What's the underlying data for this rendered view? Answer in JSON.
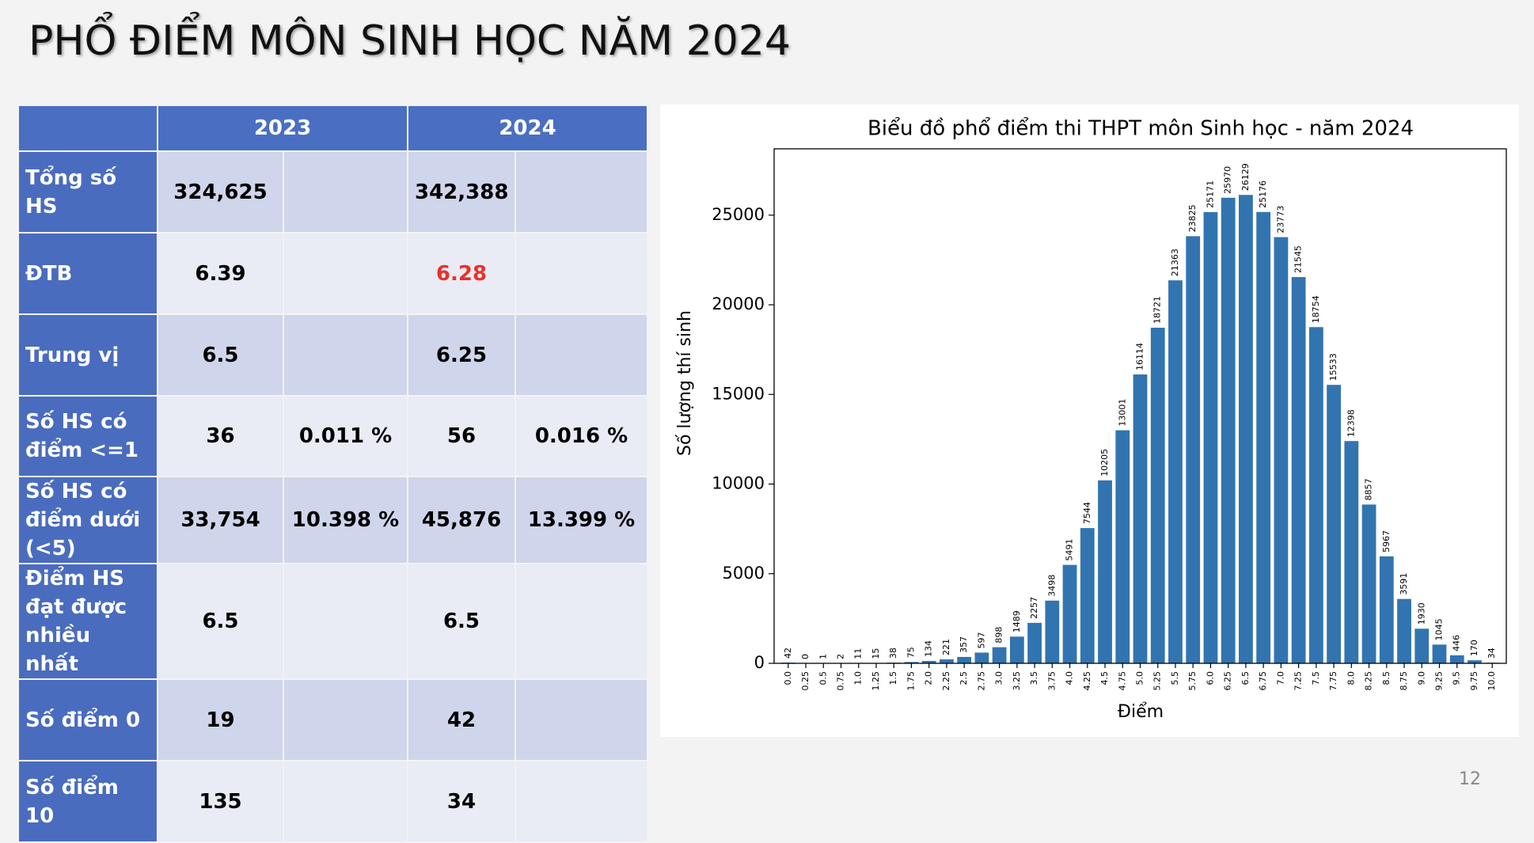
{
  "title": "PHỔ ĐIỂM MÔN SINH HỌC NĂM 2024",
  "page_number": "12",
  "table": {
    "header": [
      "2023",
      "2024"
    ],
    "rows": [
      {
        "label": "Tổng số HS",
        "cells": [
          "324,625",
          null,
          "342,388",
          null
        ]
      },
      {
        "label": "ĐTB",
        "cells": [
          "6.39",
          null,
          {
            "text": "6.28",
            "color": "#e8312a"
          },
          null
        ]
      },
      {
        "label": "Trung vị",
        "cells": [
          "6.5",
          null,
          "6.25",
          null
        ]
      },
      {
        "label": "Số HS có điểm <=1",
        "cells": [
          "36",
          "0.011 %",
          "56",
          "0.016 %"
        ]
      },
      {
        "label": "Số HS có điểm dưới (<5)",
        "cells": [
          "33,754",
          "10.398 %",
          "45,876",
          "13.399 %"
        ]
      },
      {
        "label": "Điểm HS đạt được nhiều nhất",
        "cells": [
          "6.5",
          null,
          "6.5",
          null
        ]
      },
      {
        "label": "Số điểm 0",
        "cells": [
          "19",
          null,
          "42",
          null
        ]
      },
      {
        "label": "Số điểm 10",
        "cells": [
          "135",
          null,
          "34",
          null
        ]
      }
    ]
  },
  "chart_data": {
    "type": "bar",
    "title": "Biểu đồ phổ điểm thi THPT môn Sinh học - năm 2024",
    "x_label": "Điểm",
    "y_label": "Số lượng thí sinh",
    "categories": [
      "0.0",
      "0.25",
      "0.5",
      "0.75",
      "1.0",
      "1.25",
      "1.5",
      "1.75",
      "2.0",
      "2.25",
      "2.5",
      "2.75",
      "3.0",
      "3.25",
      "3.5",
      "3.75",
      "4.0",
      "4.25",
      "4.5",
      "4.75",
      "5.0",
      "5.25",
      "5.5",
      "5.75",
      "6.0",
      "6.25",
      "6.5",
      "6.75",
      "7.0",
      "7.25",
      "7.5",
      "7.75",
      "8.0",
      "8.25",
      "8.5",
      "8.75",
      "9.0",
      "9.25",
      "9.5",
      "9.75",
      "10.0"
    ],
    "values": [
      42,
      0,
      1,
      2,
      11,
      15,
      38,
      75,
      134,
      221,
      357,
      597,
      898,
      1489,
      2257,
      3498,
      5491,
      7544,
      10205,
      13001,
      16114,
      18721,
      21363,
      23825,
      25171,
      25970,
      26129,
      25176,
      23773,
      21545,
      18754,
      15533,
      12398,
      8857,
      5967,
      3591,
      1930,
      1045,
      446,
      170,
      34
    ],
    "color": "#3274b0",
    "ylim": [
      0,
      28700
    ],
    "yticks": [
      0,
      5000,
      10000,
      15000,
      20000,
      25000
    ],
    "grid": false
  }
}
